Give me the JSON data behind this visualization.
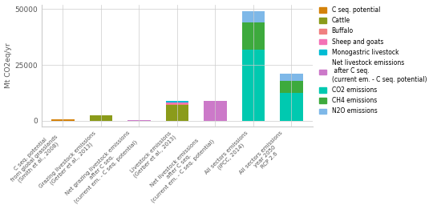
{
  "categories": [
    "C seq. potential\nfrom global grasslands\n(Smith et al., 2008)",
    "Grazing livestock emissions\n(Gerber et al., 2013)",
    "Net grazing livestock emissions\nafter C seq.\n(current em. - C seq. potential)",
    "Livestock emissions\n(Gerber et al., 2013)",
    "Net livestock emissions\nafter C seq.\n(current em. - C seq. potential)",
    "All sectors emissions\n(IPCC, 2014)",
    "All sectors emissions\nyear 2050\nRCP 2.6"
  ],
  "legend_labels": [
    "C seq. potential",
    "Cattle",
    "Buffalo",
    "Sheep and goats",
    "Monogastric livestock",
    "Net livestock emissions\n after C seq.\n(current em. - C seq. potential)",
    "CO2 emissions",
    "CH4 emissions",
    "N2O emissions"
  ],
  "legend_colors": [
    "#D4820A",
    "#8B9B1A",
    "#F08080",
    "#F472B6",
    "#00BCD4",
    "#CC79C9",
    "#00C9B0",
    "#3DAA3D",
    "#7EB8E8"
  ],
  "bar_data": {
    "C seq. potential": [
      500,
      0,
      0,
      0,
      0,
      0,
      0
    ],
    "Cattle": [
      0,
      2500,
      0,
      7000,
      0,
      0,
      0
    ],
    "Buffalo": [
      0,
      0,
      0,
      500,
      0,
      0,
      0
    ],
    "Sheep and goats": [
      0,
      0,
      0,
      700,
      0,
      0,
      0
    ],
    "Monogastric livestock": [
      0,
      0,
      0,
      800,
      0,
      0,
      0
    ],
    "Net livestock emissions": [
      0,
      0,
      200,
      0,
      9000,
      0,
      0
    ],
    "CO2 emissions": [
      0,
      0,
      0,
      0,
      0,
      32000,
      12500
    ],
    "CH4 emissions": [
      0,
      0,
      0,
      0,
      0,
      12000,
      5500
    ],
    "N2O emissions": [
      0,
      0,
      0,
      0,
      0,
      5000,
      3000
    ]
  },
  "bar_colors": {
    "C seq. potential": "#D4820A",
    "Cattle": "#8B9B1A",
    "Buffalo": "#F08080",
    "Sheep and goats": "#F472B6",
    "Monogastric livestock": "#00BCD4",
    "Net livestock emissions": "#CC79C9",
    "CO2 emissions": "#00C9B0",
    "CH4 emissions": "#3DAA3D",
    "N2O emissions": "#7EB8E8"
  },
  "ylabel": "Mt CO2eq/yr",
  "ylim": [
    -2500,
    52000
  ],
  "yticks": [
    0,
    25000,
    50000
  ],
  "background_color": "#FFFFFF",
  "grid_color": "#CCCCCC"
}
